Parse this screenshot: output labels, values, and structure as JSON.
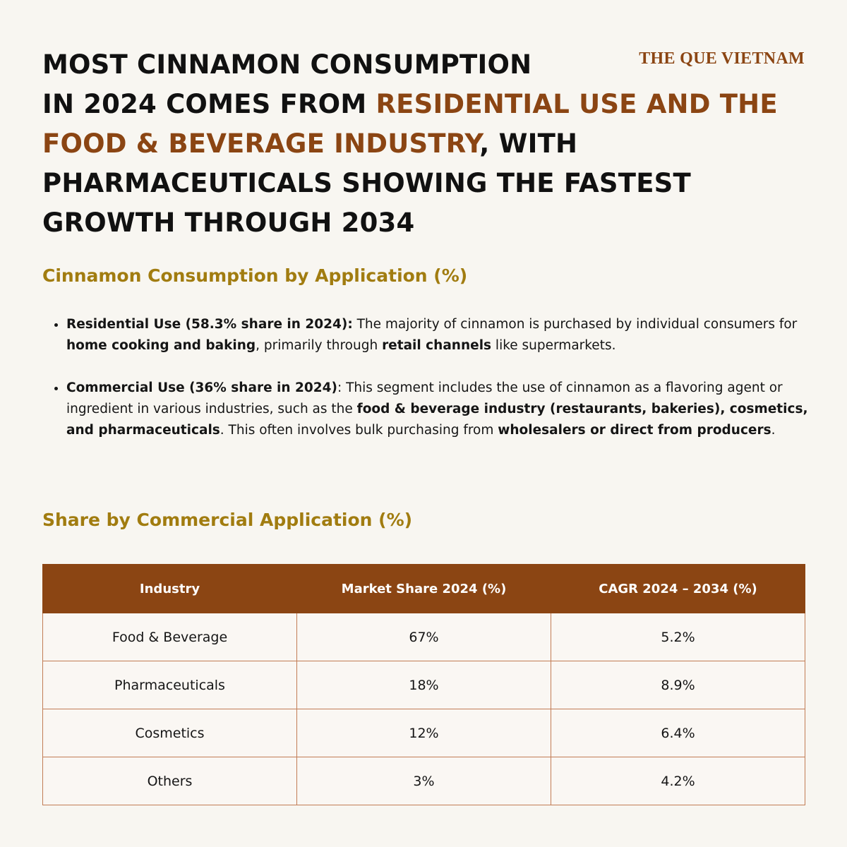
{
  "brand": "THE QUE VIETNAM",
  "headline": [
    {
      "text": "MOST CINNAMON CONSUMPTION",
      "highlight": false
    },
    {
      "text": "IN 2024 COMES FROM ",
      "highlight": false
    },
    {
      "text": "RESIDENTIAL USE AND THE FOOD & BEVERAGE INDUSTRY",
      "highlight": true
    },
    {
      "text": ", WITH PHARMACEUTICALS SHOWING THE FASTEST GROWTH THROUGH 2034",
      "highlight": false
    }
  ],
  "section1": {
    "title": "Cinnamon Consumption by Application (%)",
    "bullets": [
      [
        {
          "text": "Residential Use (58.3% share in 2024):",
          "bold": true
        },
        {
          "text": " The majority of cinnamon is purchased by individual consumers for ",
          "bold": false
        },
        {
          "text": "home cooking and baking",
          "bold": true
        },
        {
          "text": ", primarily through ",
          "bold": false
        },
        {
          "text": "retail channels",
          "bold": true
        },
        {
          "text": " like supermarkets.",
          "bold": false
        }
      ],
      [
        {
          "text": "Commercial Use (36% share in 2024)",
          "bold": true
        },
        {
          "text": ": This segment includes the use of cinnamon as a flavoring agent or ingredient in various industries, such as the ",
          "bold": false
        },
        {
          "text": "food & beverage industry (restaurants, bakeries), cosmetics, and pharmaceuticals",
          "bold": true
        },
        {
          "text": ". This often involves bulk purchasing from ",
          "bold": false
        },
        {
          "text": "wholesalers or direct from producers",
          "bold": true
        },
        {
          "text": ".",
          "bold": false
        }
      ]
    ]
  },
  "section2": {
    "title": "Share by Commercial Application (%)",
    "table": {
      "columns": [
        "Industry",
        "Market Share 2024 (%)",
        "CAGR 2024 – 2034 (%)"
      ],
      "rows": [
        [
          "Food & Beverage",
          "67%",
          "5.2%"
        ],
        [
          "Pharmaceuticals",
          "18%",
          "8.9%"
        ],
        [
          "Cosmetics",
          "12%",
          "6.4%"
        ],
        [
          "Others",
          "3%",
          "4.2%"
        ]
      ]
    }
  }
}
